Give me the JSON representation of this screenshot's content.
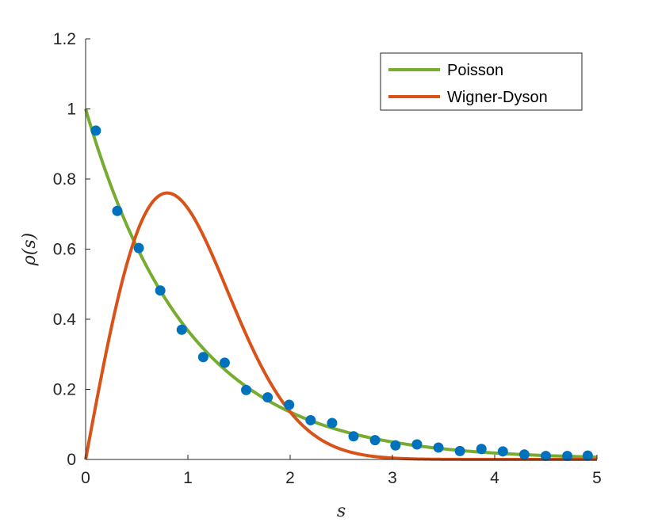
{
  "chart_data": {
    "type": "line",
    "title": "",
    "xlabel": "s",
    "ylabel": "ρ(s)",
    "xlim": [
      0,
      5
    ],
    "ylim": [
      0,
      1.2
    ],
    "x_ticks": [
      "0",
      "1",
      "2",
      "3",
      "4",
      "5"
    ],
    "y_ticks": [
      "0",
      "0.2",
      "0.4",
      "0.6",
      "0.8",
      "1",
      "1.2"
    ],
    "grid": false,
    "legend_position": "top-right",
    "series": [
      {
        "name": "Poisson",
        "kind": "line",
        "color": "#77AC30",
        "formula": "exp(-s)"
      },
      {
        "name": "Wigner-Dyson",
        "kind": "line",
        "color": "#D95319",
        "formula": "(pi/2) s exp(-pi s^2 / 4)"
      },
      {
        "kind": "scatter",
        "color": "#0072BD",
        "x": [
          0.1,
          0.31,
          0.52,
          0.73,
          0.94,
          1.15,
          1.36,
          1.57,
          1.78,
          1.99,
          2.2,
          2.41,
          2.62,
          2.83,
          3.03,
          3.24,
          3.45,
          3.66,
          3.87,
          4.08,
          4.29,
          4.5,
          4.71,
          4.91
        ],
        "y": [
          0.938,
          0.709,
          0.603,
          0.482,
          0.37,
          0.292,
          0.276,
          0.198,
          0.177,
          0.156,
          0.112,
          0.104,
          0.066,
          0.055,
          0.04,
          0.043,
          0.034,
          0.024,
          0.03,
          0.023,
          0.014,
          0.01,
          0.01,
          0.011
        ]
      }
    ]
  }
}
